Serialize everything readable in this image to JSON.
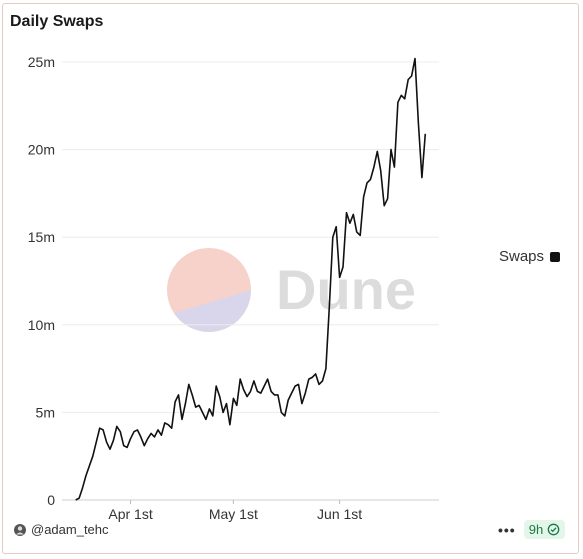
{
  "card": {
    "footer": {
      "user": "@adam_tehc",
      "age_badge": "9h"
    }
  },
  "watermark": {
    "text": "Dune"
  },
  "chart_data": {
    "type": "line",
    "title": "Daily Swaps",
    "xlabel": "",
    "ylabel": "",
    "ylim": [
      0,
      25000000
    ],
    "yticks": [
      0,
      5000000,
      10000000,
      15000000,
      20000000,
      25000000
    ],
    "ytick_labels": [
      "0",
      "5m",
      "10m",
      "15m",
      "20m",
      "25m"
    ],
    "xticks": [
      "2023-04-01",
      "2023-05-01",
      "2023-06-01"
    ],
    "xtick_labels": [
      "Apr 1st",
      "May 1st",
      "Jun 1st"
    ],
    "xlim": [
      "2023-03-12",
      "2023-06-30"
    ],
    "grid": true,
    "legend_position": "right",
    "series": [
      {
        "name": "Swaps",
        "color": "#111111",
        "points": [
          [
            "2023-03-16",
            0
          ],
          [
            "2023-03-17",
            100000
          ],
          [
            "2023-03-18",
            700000
          ],
          [
            "2023-03-19",
            1400000
          ],
          [
            "2023-03-21",
            2500000
          ],
          [
            "2023-03-23",
            4100000
          ],
          [
            "2023-03-24",
            4000000
          ],
          [
            "2023-03-25",
            3300000
          ],
          [
            "2023-03-26",
            2900000
          ],
          [
            "2023-03-27",
            3400000
          ],
          [
            "2023-03-28",
            4200000
          ],
          [
            "2023-03-29",
            3900000
          ],
          [
            "2023-03-30",
            3100000
          ],
          [
            "2023-03-31",
            3000000
          ],
          [
            "2023-04-01",
            3500000
          ],
          [
            "2023-04-02",
            3900000
          ],
          [
            "2023-04-03",
            4000000
          ],
          [
            "2023-04-04",
            3600000
          ],
          [
            "2023-04-05",
            3100000
          ],
          [
            "2023-04-06",
            3500000
          ],
          [
            "2023-04-07",
            3800000
          ],
          [
            "2023-04-08",
            3600000
          ],
          [
            "2023-04-09",
            4000000
          ],
          [
            "2023-04-10",
            3700000
          ],
          [
            "2023-04-11",
            4400000
          ],
          [
            "2023-04-12",
            4300000
          ],
          [
            "2023-04-13",
            4100000
          ],
          [
            "2023-04-14",
            5600000
          ],
          [
            "2023-04-15",
            6000000
          ],
          [
            "2023-04-16",
            4600000
          ],
          [
            "2023-04-17",
            5500000
          ],
          [
            "2023-04-18",
            6600000
          ],
          [
            "2023-04-19",
            6000000
          ],
          [
            "2023-04-20",
            5300000
          ],
          [
            "2023-04-21",
            5400000
          ],
          [
            "2023-04-22",
            5000000
          ],
          [
            "2023-04-23",
            4600000
          ],
          [
            "2023-04-24",
            5200000
          ],
          [
            "2023-04-25",
            4800000
          ],
          [
            "2023-04-26",
            6500000
          ],
          [
            "2023-04-27",
            5900000
          ],
          [
            "2023-04-28",
            5000000
          ],
          [
            "2023-04-29",
            5500000
          ],
          [
            "2023-04-30",
            4300000
          ],
          [
            "2023-05-01",
            5800000
          ],
          [
            "2023-05-02",
            5400000
          ],
          [
            "2023-05-03",
            6900000
          ],
          [
            "2023-05-04",
            6300000
          ],
          [
            "2023-05-05",
            5900000
          ],
          [
            "2023-05-06",
            6200000
          ],
          [
            "2023-05-07",
            6800000
          ],
          [
            "2023-05-08",
            6200000
          ],
          [
            "2023-05-09",
            6100000
          ],
          [
            "2023-05-10",
            6500000
          ],
          [
            "2023-05-11",
            6900000
          ],
          [
            "2023-05-12",
            6200000
          ],
          [
            "2023-05-13",
            6000000
          ],
          [
            "2023-05-14",
            6000000
          ],
          [
            "2023-05-15",
            5000000
          ],
          [
            "2023-05-16",
            4800000
          ],
          [
            "2023-05-17",
            5700000
          ],
          [
            "2023-05-18",
            6100000
          ],
          [
            "2023-05-19",
            6500000
          ],
          [
            "2023-05-20",
            6600000
          ],
          [
            "2023-05-21",
            5500000
          ],
          [
            "2023-05-22",
            6100000
          ],
          [
            "2023-05-23",
            6900000
          ],
          [
            "2023-05-24",
            7000000
          ],
          [
            "2023-05-25",
            7200000
          ],
          [
            "2023-05-26",
            6600000
          ],
          [
            "2023-05-27",
            6800000
          ],
          [
            "2023-05-28",
            7500000
          ],
          [
            "2023-05-29",
            11000000
          ],
          [
            "2023-05-30",
            15000000
          ],
          [
            "2023-05-31",
            15600000
          ],
          [
            "2023-06-01",
            12700000
          ],
          [
            "2023-06-02",
            13300000
          ],
          [
            "2023-06-03",
            16400000
          ],
          [
            "2023-06-04",
            15800000
          ],
          [
            "2023-06-05",
            16300000
          ],
          [
            "2023-06-06",
            15300000
          ],
          [
            "2023-06-07",
            15100000
          ],
          [
            "2023-06-08",
            17300000
          ],
          [
            "2023-06-09",
            18100000
          ],
          [
            "2023-06-10",
            18300000
          ],
          [
            "2023-06-11",
            19000000
          ],
          [
            "2023-06-12",
            19900000
          ],
          [
            "2023-06-13",
            18800000
          ],
          [
            "2023-06-14",
            16800000
          ],
          [
            "2023-06-15",
            17200000
          ],
          [
            "2023-06-16",
            20000000
          ],
          [
            "2023-06-17",
            19000000
          ],
          [
            "2023-06-18",
            22700000
          ],
          [
            "2023-06-19",
            23100000
          ],
          [
            "2023-06-20",
            22900000
          ],
          [
            "2023-06-21",
            24000000
          ],
          [
            "2023-06-22",
            24200000
          ],
          [
            "2023-06-23",
            25200000
          ],
          [
            "2023-06-24",
            21500000
          ],
          [
            "2023-06-25",
            18400000
          ],
          [
            "2023-06-26",
            20900000
          ]
        ]
      }
    ]
  }
}
